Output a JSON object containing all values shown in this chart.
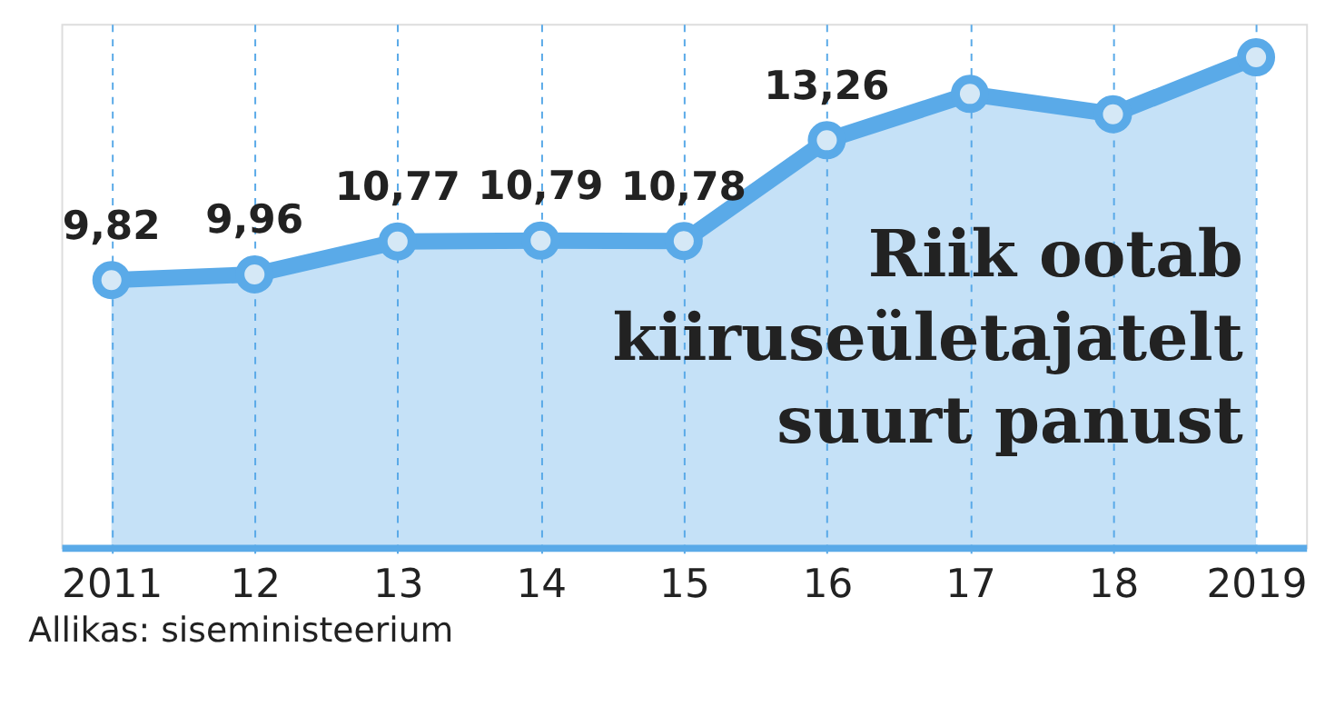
{
  "chart_data": {
    "type": "area",
    "title": "Riik ootab kiiruseületajatelt suurt panust",
    "categories": [
      "2011",
      "12",
      "13",
      "14",
      "15",
      "16",
      "17",
      "18",
      "2019"
    ],
    "series": [
      {
        "color": "#5aaae8",
        "values": [
          9.82,
          9.96,
          10.77,
          10.79,
          10.78,
          13.26,
          14.4,
          13.9,
          15.3
        ],
        "value_labels": [
          "9,82",
          "9,96",
          "10,77",
          "10,79",
          "10,78",
          "13,26",
          null,
          null,
          null
        ]
      }
    ],
    "marker": "circle",
    "grid": "x",
    "line_style": "solid",
    "legend": false,
    "tick_labels": "x",
    "annotations": [
      "Allikas: siseministeerium"
    ]
  }
}
